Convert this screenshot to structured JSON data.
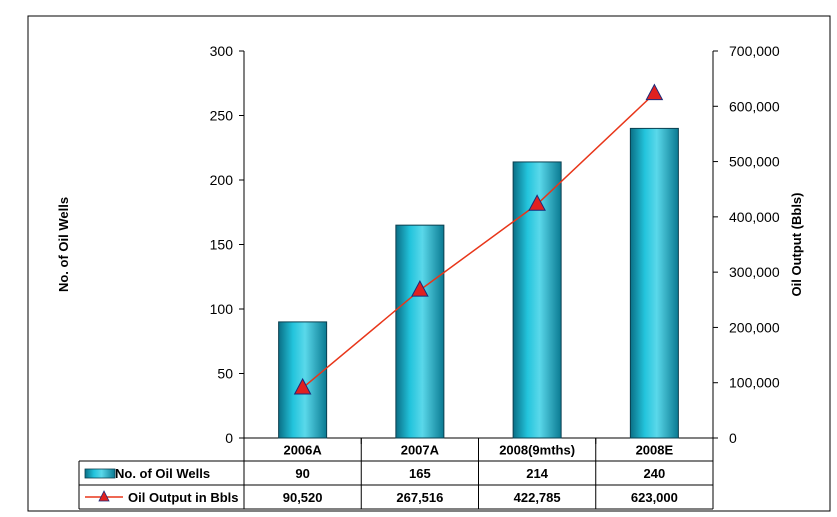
{
  "chart_data": {
    "type": "bar",
    "categories": [
      "2006A",
      "2007A",
      "2008(9mths)",
      "2008E"
    ],
    "series": [
      {
        "name": "No. of Oil Wells",
        "type": "bar",
        "axis": "left",
        "values": [
          90,
          165,
          214,
          240
        ],
        "labels": [
          "90",
          "165",
          "214",
          "240"
        ]
      },
      {
        "name": "Oil Output in Bbls",
        "type": "line",
        "axis": "right",
        "values": [
          90520,
          267516,
          422785,
          623000
        ],
        "labels": [
          "90,520",
          "267,516",
          "422,785",
          "623,000"
        ]
      }
    ],
    "ylabel": "No. of Oil Wells",
    "y2label": "Oil Output (Bbls)",
    "ylim": [
      0,
      300
    ],
    "y2lim": [
      0,
      700000
    ],
    "yticks": [
      "0",
      "50",
      "100",
      "150",
      "200",
      "250",
      "300"
    ],
    "y2ticks": [
      "0",
      "100,000",
      "200,000",
      "300,000",
      "400,000",
      "500,000",
      "600,000",
      "700,000"
    ],
    "legend": "data-table",
    "grid": false,
    "colors": {
      "bar": "#1fb5d0",
      "bar_dark": "#0a6f86",
      "line": "#e8361a",
      "marker": "#e02020",
      "marker_edge": "#1a2a7a"
    }
  }
}
